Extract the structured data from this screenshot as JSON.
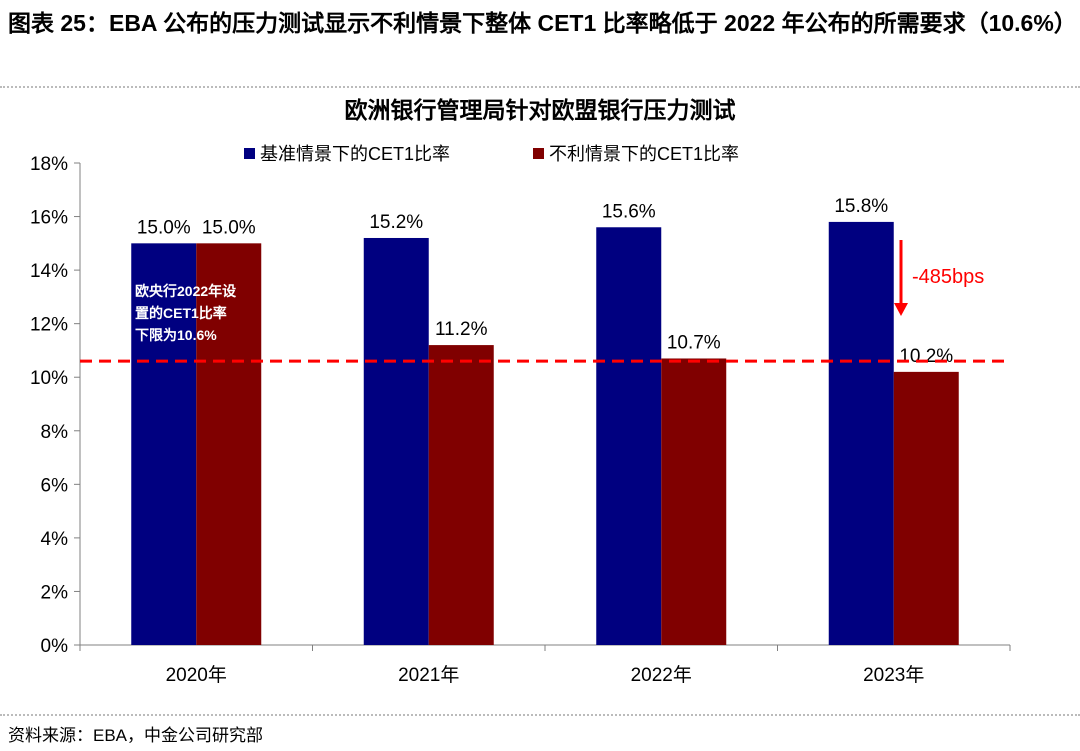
{
  "figure": {
    "title": "图表 25：EBA 公布的压力测试显示不利情景下整体 CET1 比率略低于 2022 年公布的所需要求（10.6%）",
    "source": "资料来源：EBA，中金公司研究部"
  },
  "colors": {
    "baseline": "#000080",
    "adverse": "#800000",
    "reference": "#ff0000",
    "axis": "#808080"
  },
  "chart_data": {
    "type": "bar",
    "title": "欧洲银行管理局针对欧盟银行压力测试",
    "categories": [
      "2020年",
      "2021年",
      "2022年",
      "2023年"
    ],
    "series": [
      {
        "name": "基准情景下的CET1比率",
        "values": [
          15.0,
          15.2,
          15.6,
          15.8
        ],
        "labels": [
          "15.0%",
          "15.2%",
          "15.6%",
          "15.8%"
        ]
      },
      {
        "name": "不利情景下的CET1比率",
        "values": [
          15.0,
          11.2,
          10.7,
          10.2
        ],
        "labels": [
          "15.0%",
          "11.2%",
          "10.7%",
          "10.2%"
        ]
      }
    ],
    "ylim": [
      0,
      18
    ],
    "yticks": [
      0,
      2,
      4,
      6,
      8,
      10,
      12,
      14,
      16,
      18
    ],
    "ytick_labels": [
      "0%",
      "2%",
      "4%",
      "6%",
      "8%",
      "10%",
      "12%",
      "14%",
      "16%",
      "18%"
    ],
    "legend_position": "top",
    "grid": false,
    "reference_line": {
      "value": 10.6,
      "style": "dashed"
    },
    "annotations": {
      "requirement_note": [
        "欧央行2022年设",
        "置的CET1比率",
        "下限为10.6%"
      ],
      "change_label": "-485bps"
    }
  }
}
